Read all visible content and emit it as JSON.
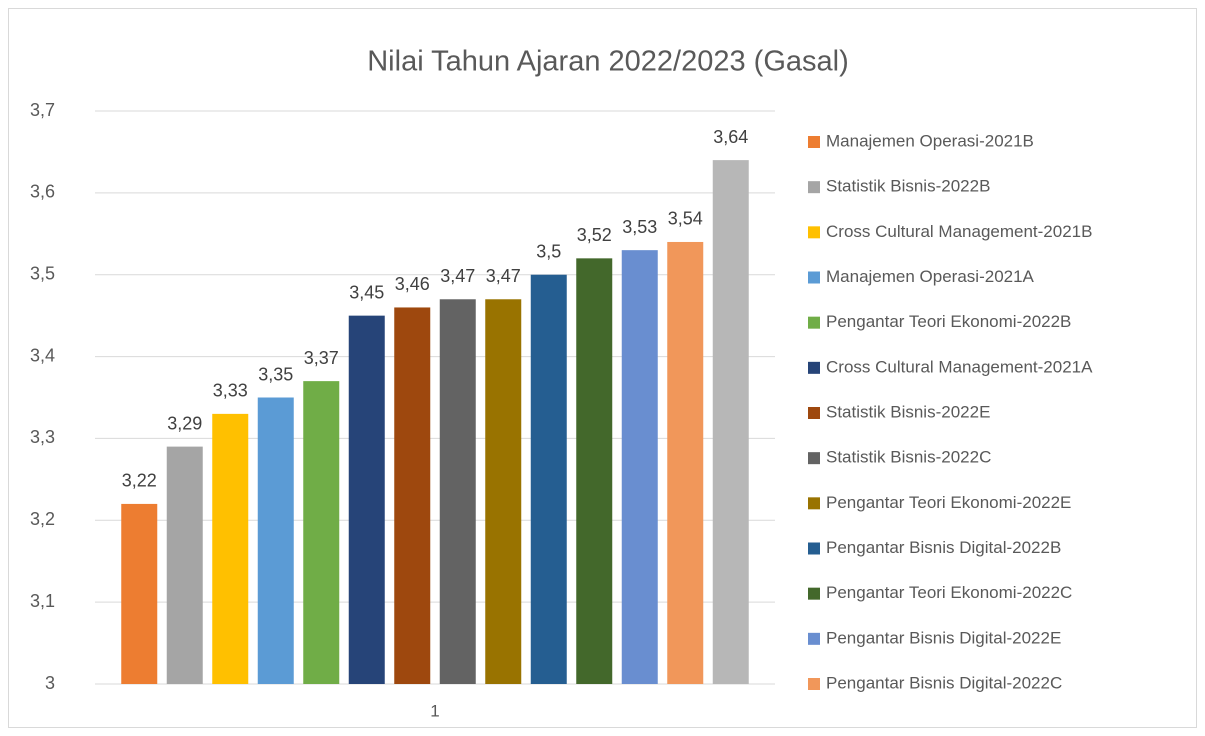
{
  "chart_data": {
    "type": "bar",
    "title": "Nilai Tahun Ajaran 2022/2023 (Gasal)",
    "categories": [
      "1"
    ],
    "series": [
      {
        "name": "Manajemen Operasi-2021B",
        "color": "#ed7d31",
        "values": [
          3.22
        ],
        "value_labels": [
          "3,22"
        ]
      },
      {
        "name": "Statistik Bisnis-2022B",
        "color": "#a5a5a5",
        "values": [
          3.29
        ],
        "value_labels": [
          "3,29"
        ]
      },
      {
        "name": "Cross Cultural Management-2021B",
        "color": "#ffc000",
        "values": [
          3.33
        ],
        "value_labels": [
          "3,33"
        ]
      },
      {
        "name": "Manajemen Operasi-2021A",
        "color": "#5b9bd5",
        "values": [
          3.35
        ],
        "value_labels": [
          "3,35"
        ]
      },
      {
        "name": "Pengantar Teori Ekonomi-2022B",
        "color": "#70ad47",
        "values": [
          3.37
        ],
        "value_labels": [
          "3,37"
        ]
      },
      {
        "name": "Cross Cultural Management-2021A",
        "color": "#264478",
        "values": [
          3.45
        ],
        "value_labels": [
          "3,45"
        ]
      },
      {
        "name": "Statistik Bisnis-2022E",
        "color": "#9e480e",
        "values": [
          3.46
        ],
        "value_labels": [
          "3,46"
        ]
      },
      {
        "name": "Statistik Bisnis-2022C",
        "color": "#636363",
        "values": [
          3.47
        ],
        "value_labels": [
          "3,47"
        ]
      },
      {
        "name": "Pengantar Teori Ekonomi-2022E",
        "color": "#997300",
        "values": [
          3.47
        ],
        "value_labels": [
          "3,47"
        ]
      },
      {
        "name": "Pengantar Bisnis Digital-2022B",
        "color": "#255e91",
        "values": [
          3.5
        ],
        "value_labels": [
          "3,5"
        ]
      },
      {
        "name": "Pengantar Teori Ekonomi-2022C",
        "color": "#43682b",
        "values": [
          3.52
        ],
        "value_labels": [
          "3,52"
        ]
      },
      {
        "name": "Pengantar Bisnis Digital-2022E",
        "color": "#698ed0",
        "values": [
          3.53
        ],
        "value_labels": [
          "3,53"
        ]
      },
      {
        "name": "Pengantar Bisnis Digital-2022C",
        "color": "#f1975a",
        "values": [
          3.54
        ],
        "value_labels": [
          "3,54"
        ]
      },
      {
        "color": "#b7b7b7",
        "values": [
          3.64
        ],
        "value_labels": [
          "3,64"
        ]
      }
    ],
    "ylim": [
      3,
      3.7
    ],
    "yticks": [
      3,
      {
        "value": 3.1,
        "label": "3,1"
      },
      {
        "value": 3.2,
        "label": "3,2"
      },
      {
        "value": 3.3,
        "label": "3,3"
      },
      {
        "value": 3.4,
        "label": "3,4"
      },
      {
        "value": 3.5,
        "label": "3,5"
      },
      {
        "value": 3.6,
        "label": "3,6"
      },
      {
        "value": 3.7,
        "label": "3,7"
      }
    ],
    "grid": true,
    "legend": "right"
  }
}
